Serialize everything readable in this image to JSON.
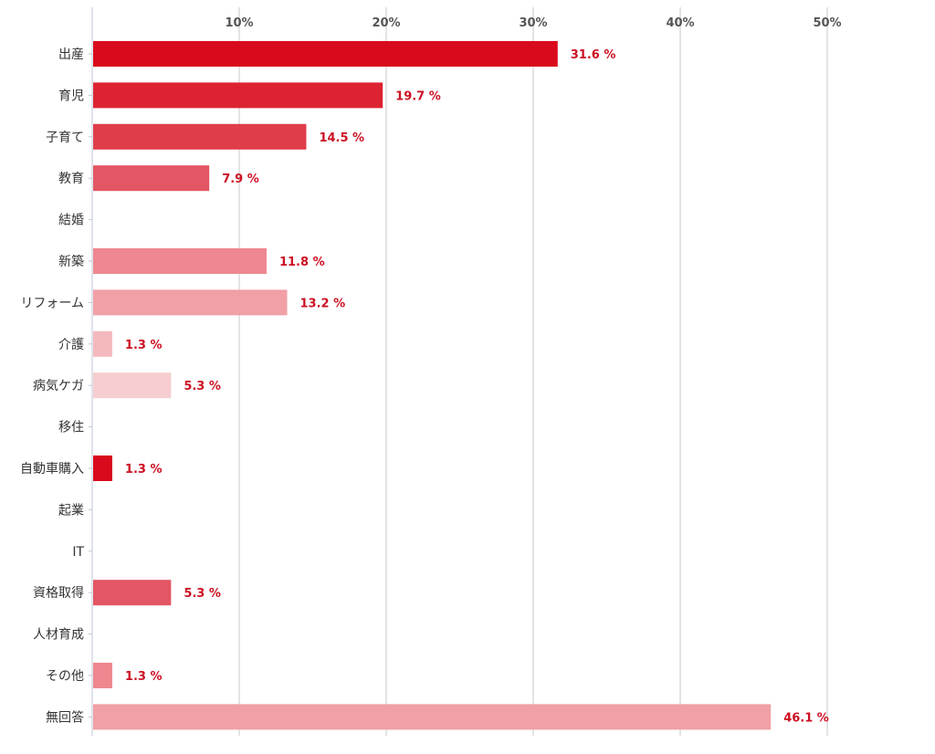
{
  "chart_data": {
    "type": "bar",
    "orientation": "horizontal",
    "title": "",
    "xlabel": "",
    "ylabel": "",
    "xlim": [
      0,
      50
    ],
    "ticks": [
      10,
      20,
      30,
      40,
      50
    ],
    "tick_labels": [
      "10%",
      "20%",
      "30%",
      "40%",
      "50%"
    ],
    "grid": true,
    "categories": [
      "出産",
      "育児",
      "子育て",
      "教育",
      "結婚",
      "新築",
      "リフォーム",
      "介護",
      "病気ケガ",
      "移住",
      "自動車購入",
      "起業",
      "IT",
      "資格取得",
      "人材育成",
      "その他",
      "無回答"
    ],
    "values": [
      31.6,
      19.7,
      14.5,
      7.9,
      null,
      11.8,
      13.2,
      1.3,
      5.3,
      null,
      1.3,
      null,
      null,
      5.3,
      null,
      1.3,
      46.1
    ],
    "value_labels": [
      "31.6 %",
      "19.7 %",
      "14.5 %",
      "7.9 %",
      "",
      "11.8 %",
      "13.2 %",
      "1.3 %",
      "5.3 %",
      "",
      "1.3 %",
      "",
      "",
      "5.3 %",
      "",
      "1.3 %",
      "46.1 %"
    ],
    "colors": [
      "#d90a1c",
      "#dd2332",
      "#e03d4b",
      "#e35664",
      "#e35664",
      "#ee878f",
      "#f0a0a6",
      "#f3b9bd",
      "#f6cdd0",
      "#f6cdd0",
      "#d90a1c",
      "#d90a1c",
      "#d90a1c",
      "#e35664",
      "#e35664",
      "#ee878f",
      "#f0a0a6"
    ]
  }
}
